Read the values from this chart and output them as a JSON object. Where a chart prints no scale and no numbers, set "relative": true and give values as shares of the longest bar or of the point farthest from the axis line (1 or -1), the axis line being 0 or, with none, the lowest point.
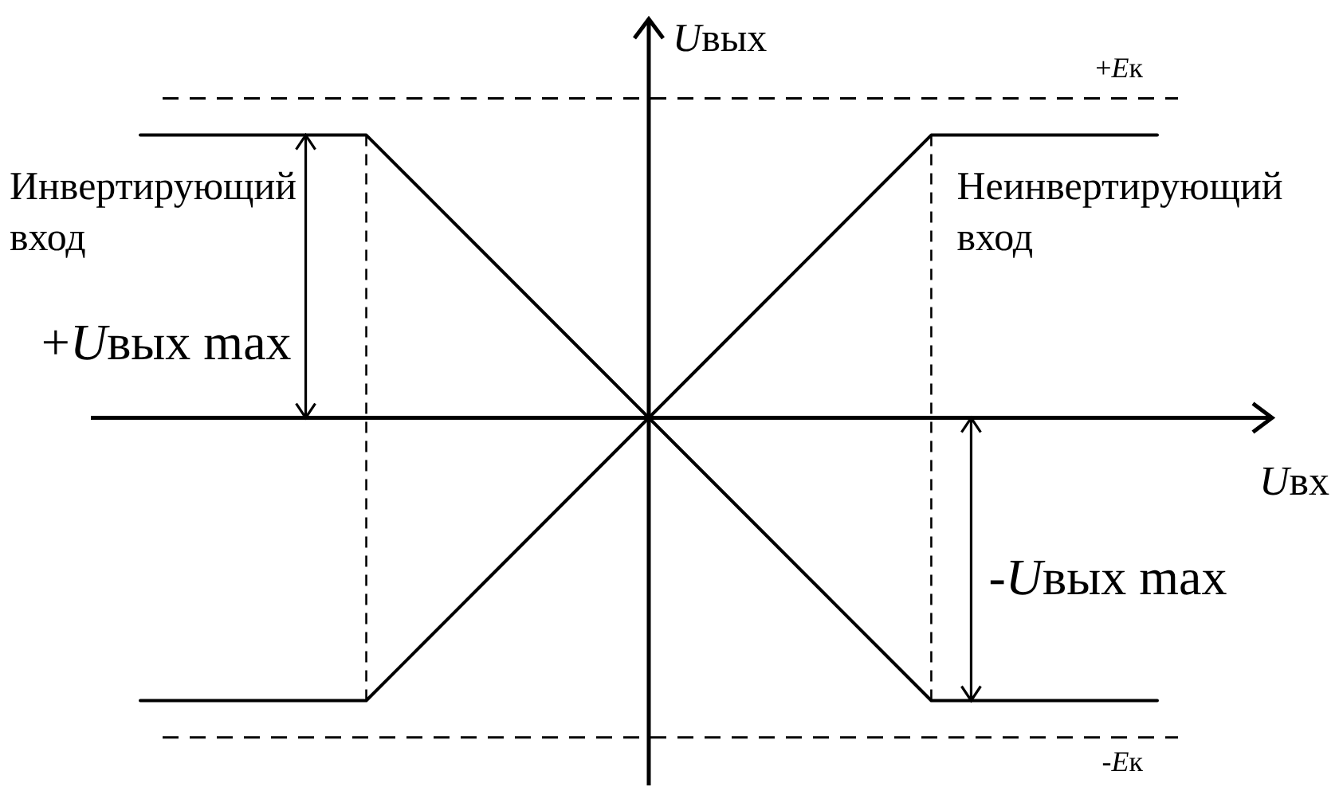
{
  "chart_data": {
    "type": "line",
    "relative": true,
    "xlabel": "Uвх",
    "ylabel": "Uвых",
    "categories": [
      null,
      null,
      null,
      null,
      null,
      null,
      null,
      null,
      null,
      null,
      null,
      null,
      null,
      null,
      null,
      null,
      null,
      null,
      null
    ],
    "series": [
      {
        "name": "Инвертирующий вход",
        "color": "#000000",
        "values": [
          1,
          1,
          1,
          1,
          1,
          0.8,
          0.6,
          0.4,
          0.2,
          0,
          -0.2,
          -0.4,
          -0.6,
          -0.8,
          -1,
          -1,
          -1,
          -1,
          -1
        ]
      },
      {
        "name": "Неинвертирующий вход",
        "color": "#000000",
        "values": [
          -1,
          -1,
          -1,
          -1,
          -1,
          -0.8,
          -0.6,
          -0.4,
          -0.2,
          0,
          0.2,
          0.4,
          0.6,
          0.8,
          1,
          1,
          1,
          1,
          1
        ]
      }
    ],
    "ref_lines": [
      {
        "axis": "y",
        "value": 1.13,
        "label": "+Eк",
        "line_style": "dashed"
      },
      {
        "axis": "y",
        "value": -1.13,
        "label": "-Eк",
        "line_style": "dashed"
      }
    ],
    "annotations": [
      "+Uвых max",
      "-Uвых max"
    ]
  }
}
